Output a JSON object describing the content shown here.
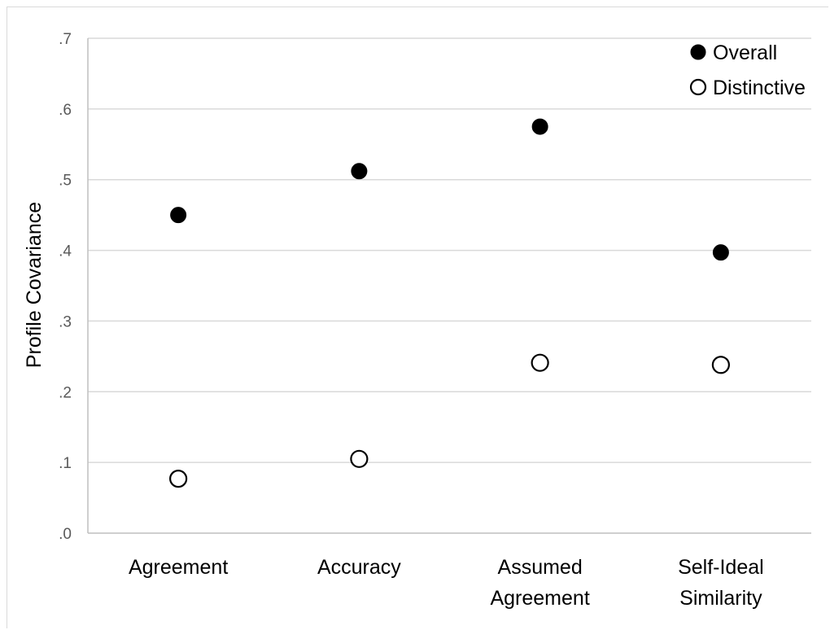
{
  "chart_data": {
    "type": "scatter",
    "title": "",
    "xlabel": "",
    "ylabel": "Profile Covariance",
    "ylim": [
      0,
      0.7
    ],
    "yticks": [
      0,
      0.1,
      0.2,
      0.3,
      0.4,
      0.5,
      0.6,
      0.7
    ],
    "ytick_labels": [
      ".0",
      ".1",
      ".2",
      ".3",
      ".4",
      ".5",
      ".6",
      ".7"
    ],
    "categories": [
      [
        "Agreement"
      ],
      [
        "Accuracy"
      ],
      [
        "Assumed",
        "Agreement"
      ],
      [
        "Self-Ideal",
        "Similarity"
      ]
    ],
    "grid": true,
    "legend_position": "top-right",
    "series": [
      {
        "name": "Overall",
        "marker": "filled-circle",
        "color": "#000000",
        "values": [
          0.45,
          0.512,
          0.575,
          0.397
        ]
      },
      {
        "name": "Distinctive",
        "marker": "open-circle",
        "color": "#000000",
        "values": [
          0.077,
          0.105,
          0.241,
          0.238
        ]
      }
    ]
  }
}
